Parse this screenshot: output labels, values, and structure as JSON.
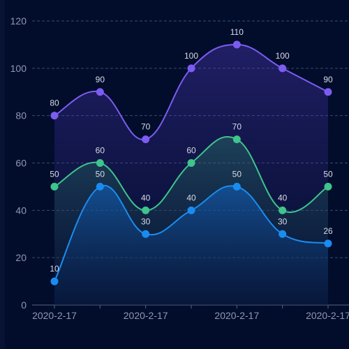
{
  "chart_data": {
    "type": "line",
    "categories": [
      "2020-2-17",
      "",
      "2020-2-17",
      "",
      "2020-2-17",
      "",
      "2020-2-17"
    ],
    "ylim": [
      0,
      120
    ],
    "y_ticks": [
      0,
      20,
      40,
      60,
      80,
      100,
      120
    ],
    "grid": true,
    "smooth": true,
    "area_fill": true,
    "series": [
      {
        "color": "#7c5cf0",
        "values": [
          80,
          90,
          70,
          100,
          110,
          100,
          90
        ]
      },
      {
        "color": "#3ec48c",
        "values": [
          50,
          60,
          40,
          60,
          70,
          40,
          50
        ]
      },
      {
        "color": "#1a8cf0",
        "values": [
          10,
          50,
          30,
          40,
          50,
          30,
          26
        ]
      }
    ],
    "colors": {
      "background": "#020d2c",
      "grid": "#3b4a6e",
      "axis": "#58627f"
    }
  }
}
